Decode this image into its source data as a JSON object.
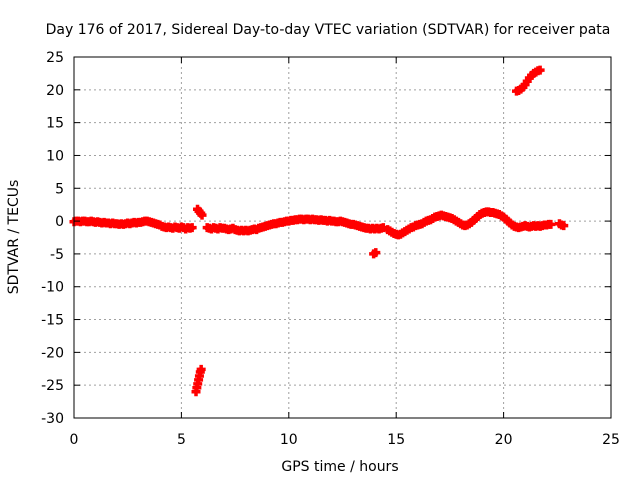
{
  "chart_data": {
    "type": "scatter",
    "title": "Day 176 of 2017, Sidereal Day-to-day VTEC variation (SDTVAR) for receiver pata",
    "xlabel": "GPS time / hours",
    "ylabel": "SDTVAR / TECUs",
    "xlim": [
      0,
      25
    ],
    "ylim": [
      -30,
      25
    ],
    "xticks": [
      0,
      5,
      10,
      15,
      20,
      25
    ],
    "yticks": [
      25,
      20,
      15,
      10,
      5,
      0,
      -5,
      -10,
      -15,
      -20,
      -25,
      -30
    ],
    "grid": true,
    "marker": "plus",
    "color": "#ff0000",
    "series": [
      {
        "name": "SDTVAR",
        "points": [
          [
            0.0,
            -0.1
          ],
          [
            0.1,
            0.0
          ],
          [
            0.2,
            0.0
          ],
          [
            0.3,
            -0.1
          ],
          [
            0.4,
            0.0
          ],
          [
            0.5,
            0.0
          ],
          [
            0.6,
            -0.1
          ],
          [
            0.7,
            -0.1
          ],
          [
            0.8,
            0.0
          ],
          [
            0.9,
            -0.1
          ],
          [
            1.0,
            -0.2
          ],
          [
            1.1,
            -0.1
          ],
          [
            1.2,
            -0.2
          ],
          [
            1.3,
            -0.3
          ],
          [
            1.4,
            -0.2
          ],
          [
            1.5,
            -0.3
          ],
          [
            1.6,
            -0.3
          ],
          [
            1.7,
            -0.4
          ],
          [
            1.8,
            -0.3
          ],
          [
            1.9,
            -0.4
          ],
          [
            2.0,
            -0.4
          ],
          [
            2.1,
            -0.5
          ],
          [
            2.2,
            -0.4
          ],
          [
            2.3,
            -0.5
          ],
          [
            2.4,
            -0.4
          ],
          [
            2.5,
            -0.3
          ],
          [
            2.6,
            -0.4
          ],
          [
            2.7,
            -0.3
          ],
          [
            2.8,
            -0.2
          ],
          [
            2.9,
            -0.3
          ],
          [
            3.0,
            -0.2
          ],
          [
            3.1,
            -0.2
          ],
          [
            3.2,
            -0.1
          ],
          [
            3.3,
            0.0
          ],
          [
            3.4,
            0.0
          ],
          [
            3.5,
            -0.1
          ],
          [
            3.6,
            -0.2
          ],
          [
            3.7,
            -0.3
          ],
          [
            3.8,
            -0.4
          ],
          [
            3.9,
            -0.5
          ],
          [
            4.0,
            -0.6
          ],
          [
            4.1,
            -0.8
          ],
          [
            4.2,
            -0.9
          ],
          [
            4.3,
            -1.0
          ],
          [
            4.4,
            -0.9
          ],
          [
            4.5,
            -1.0
          ],
          [
            4.6,
            -1.1
          ],
          [
            4.7,
            -0.9
          ],
          [
            4.8,
            -1.0
          ],
          [
            4.9,
            -1.1
          ],
          [
            5.0,
            -0.9
          ],
          [
            5.1,
            -1.0
          ],
          [
            5.2,
            -1.2
          ],
          [
            5.3,
            -1.0
          ],
          [
            5.4,
            -1.1
          ],
          [
            5.5,
            -1.0
          ],
          [
            5.68,
            -26.0
          ],
          [
            5.72,
            -25.4
          ],
          [
            5.76,
            -24.8
          ],
          [
            5.8,
            -24.2
          ],
          [
            5.84,
            -23.6
          ],
          [
            5.88,
            -23.0
          ],
          [
            5.92,
            -22.6
          ],
          [
            5.75,
            1.8
          ],
          [
            5.82,
            1.5
          ],
          [
            5.9,
            1.2
          ],
          [
            5.96,
            0.9
          ],
          [
            6.2,
            -1.0
          ],
          [
            6.3,
            -1.1
          ],
          [
            6.4,
            -1.2
          ],
          [
            6.5,
            -1.0
          ],
          [
            6.6,
            -1.1
          ],
          [
            6.7,
            -1.2
          ],
          [
            6.8,
            -1.0
          ],
          [
            6.9,
            -1.1
          ],
          [
            7.0,
            -1.1
          ],
          [
            7.1,
            -1.2
          ],
          [
            7.2,
            -1.3
          ],
          [
            7.3,
            -1.2
          ],
          [
            7.4,
            -1.1
          ],
          [
            7.5,
            -1.3
          ],
          [
            7.6,
            -1.4
          ],
          [
            7.7,
            -1.5
          ],
          [
            7.8,
            -1.4
          ],
          [
            7.9,
            -1.5
          ],
          [
            8.0,
            -1.4
          ],
          [
            8.1,
            -1.5
          ],
          [
            8.2,
            -1.4
          ],
          [
            8.3,
            -1.3
          ],
          [
            8.4,
            -1.2
          ],
          [
            8.5,
            -1.3
          ],
          [
            8.6,
            -1.1
          ],
          [
            8.7,
            -1.0
          ],
          [
            8.8,
            -0.9
          ],
          [
            8.9,
            -0.8
          ],
          [
            9.0,
            -0.7
          ],
          [
            9.1,
            -0.6
          ],
          [
            9.2,
            -0.5
          ],
          [
            9.3,
            -0.4
          ],
          [
            9.4,
            -0.4
          ],
          [
            9.5,
            -0.3
          ],
          [
            9.6,
            -0.2
          ],
          [
            9.7,
            -0.2
          ],
          [
            9.8,
            -0.1
          ],
          [
            9.9,
            0.0
          ],
          [
            10.0,
            0.0
          ],
          [
            10.1,
            0.1
          ],
          [
            10.2,
            0.1
          ],
          [
            10.3,
            0.2
          ],
          [
            10.4,
            0.2
          ],
          [
            10.5,
            0.3
          ],
          [
            10.6,
            0.3
          ],
          [
            10.7,
            0.2
          ],
          [
            10.8,
            0.3
          ],
          [
            10.9,
            0.3
          ],
          [
            11.0,
            0.2
          ],
          [
            11.1,
            0.3
          ],
          [
            11.2,
            0.2
          ],
          [
            11.3,
            0.2
          ],
          [
            11.4,
            0.1
          ],
          [
            11.5,
            0.2
          ],
          [
            11.6,
            0.1
          ],
          [
            11.7,
            0.1
          ],
          [
            11.8,
            0.0
          ],
          [
            11.9,
            0.1
          ],
          [
            12.0,
            0.0
          ],
          [
            12.1,
            0.0
          ],
          [
            12.2,
            -0.1
          ],
          [
            12.3,
            -0.1
          ],
          [
            12.4,
            0.0
          ],
          [
            12.5,
            -0.1
          ],
          [
            12.6,
            -0.2
          ],
          [
            12.7,
            -0.3
          ],
          [
            12.8,
            -0.4
          ],
          [
            12.9,
            -0.5
          ],
          [
            13.0,
            -0.5
          ],
          [
            13.1,
            -0.6
          ],
          [
            13.2,
            -0.7
          ],
          [
            13.3,
            -0.8
          ],
          [
            13.4,
            -0.9
          ],
          [
            13.5,
            -1.0
          ],
          [
            13.6,
            -1.1
          ],
          [
            13.7,
            -1.1
          ],
          [
            13.8,
            -1.2
          ],
          [
            13.9,
            -1.1
          ],
          [
            14.0,
            -1.2
          ],
          [
            14.1,
            -1.1
          ],
          [
            14.2,
            -1.2
          ],
          [
            14.3,
            -1.1
          ],
          [
            14.4,
            -1.0
          ],
          [
            13.95,
            -5.0
          ],
          [
            14.05,
            -4.8
          ],
          [
            14.6,
            -1.3
          ],
          [
            14.7,
            -1.5
          ],
          [
            14.8,
            -1.7
          ],
          [
            14.9,
            -1.9
          ],
          [
            15.0,
            -2.0
          ],
          [
            15.1,
            -2.1
          ],
          [
            15.2,
            -2.0
          ],
          [
            15.3,
            -1.8
          ],
          [
            15.4,
            -1.6
          ],
          [
            15.5,
            -1.4
          ],
          [
            15.6,
            -1.2
          ],
          [
            15.7,
            -1.0
          ],
          [
            15.8,
            -0.9
          ],
          [
            15.9,
            -0.7
          ],
          [
            16.0,
            -0.6
          ],
          [
            16.1,
            -0.5
          ],
          [
            16.2,
            -0.4
          ],
          [
            16.3,
            -0.2
          ],
          [
            16.4,
            0.0
          ],
          [
            16.5,
            0.1
          ],
          [
            16.6,
            0.2
          ],
          [
            16.7,
            0.4
          ],
          [
            16.8,
            0.6
          ],
          [
            16.9,
            0.7
          ],
          [
            17.0,
            0.8
          ],
          [
            17.1,
            0.9
          ],
          [
            17.2,
            0.8
          ],
          [
            17.3,
            0.7
          ],
          [
            17.4,
            0.6
          ],
          [
            17.5,
            0.5
          ],
          [
            17.6,
            0.4
          ],
          [
            17.7,
            0.2
          ],
          [
            17.8,
            0.0
          ],
          [
            17.9,
            -0.2
          ],
          [
            18.0,
            -0.4
          ],
          [
            18.1,
            -0.6
          ],
          [
            18.2,
            -0.7
          ],
          [
            18.3,
            -0.6
          ],
          [
            18.4,
            -0.4
          ],
          [
            18.5,
            -0.2
          ],
          [
            18.6,
            0.1
          ],
          [
            18.7,
            0.4
          ],
          [
            18.8,
            0.7
          ],
          [
            18.9,
            1.0
          ],
          [
            19.0,
            1.2
          ],
          [
            19.1,
            1.3
          ],
          [
            19.2,
            1.4
          ],
          [
            19.3,
            1.4
          ],
          [
            19.4,
            1.3
          ],
          [
            19.5,
            1.3
          ],
          [
            19.6,
            1.2
          ],
          [
            19.7,
            1.1
          ],
          [
            19.8,
            1.0
          ],
          [
            19.9,
            0.8
          ],
          [
            20.0,
            0.6
          ],
          [
            20.1,
            0.3
          ],
          [
            20.2,
            0.0
          ],
          [
            20.3,
            -0.3
          ],
          [
            20.4,
            -0.6
          ],
          [
            20.5,
            -0.8
          ],
          [
            20.6,
            -0.9
          ],
          [
            20.7,
            -1.0
          ],
          [
            20.8,
            -0.9
          ],
          [
            20.9,
            -0.8
          ],
          [
            21.0,
            -0.7
          ],
          [
            21.1,
            -0.8
          ],
          [
            21.2,
            -0.9
          ],
          [
            21.3,
            -0.8
          ],
          [
            21.4,
            -0.7
          ],
          [
            21.5,
            -0.8
          ],
          [
            21.6,
            -0.7
          ],
          [
            21.7,
            -0.8
          ],
          [
            21.8,
            -0.7
          ],
          [
            21.9,
            -0.6
          ],
          [
            22.0,
            -0.6
          ],
          [
            22.1,
            -0.5
          ],
          [
            22.2,
            -0.5
          ],
          [
            22.6,
            -0.4
          ],
          [
            22.7,
            -0.6
          ],
          [
            22.8,
            -0.7
          ],
          [
            20.6,
            19.8
          ],
          [
            20.7,
            19.9
          ],
          [
            20.8,
            20.1
          ],
          [
            20.9,
            20.4
          ],
          [
            21.0,
            20.8
          ],
          [
            21.1,
            21.3
          ],
          [
            21.2,
            21.8
          ],
          [
            21.3,
            22.2
          ],
          [
            21.4,
            22.5
          ],
          [
            21.5,
            22.7
          ],
          [
            21.6,
            22.9
          ],
          [
            21.7,
            23.0
          ]
        ]
      }
    ]
  }
}
